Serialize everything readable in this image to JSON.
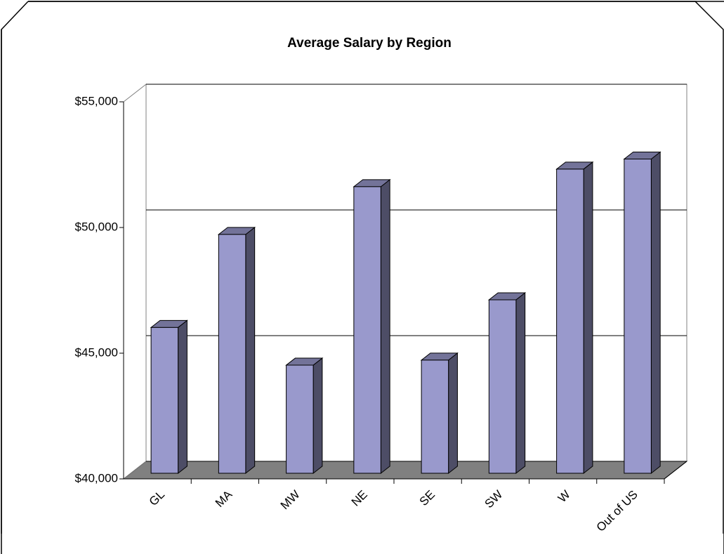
{
  "chart_data": {
    "type": "bar3d",
    "title": "Average Salary by Region",
    "categories": [
      "GL",
      "MA",
      "MW",
      "NE",
      "SE",
      "SW",
      "W",
      "Out of US"
    ],
    "values": [
      45800,
      49500,
      44300,
      51400,
      44500,
      46900,
      52100,
      52500
    ],
    "color": "#9999cc",
    "ylim": [
      40000,
      55000
    ],
    "yticks": [
      {
        "value": 40000,
        "label": "$40,000"
      },
      {
        "value": 45000,
        "label": "$45,000"
      },
      {
        "value": 50000,
        "label": "$50,000"
      },
      {
        "value": 55000,
        "label": "$55,000"
      }
    ],
    "grid": true
  }
}
